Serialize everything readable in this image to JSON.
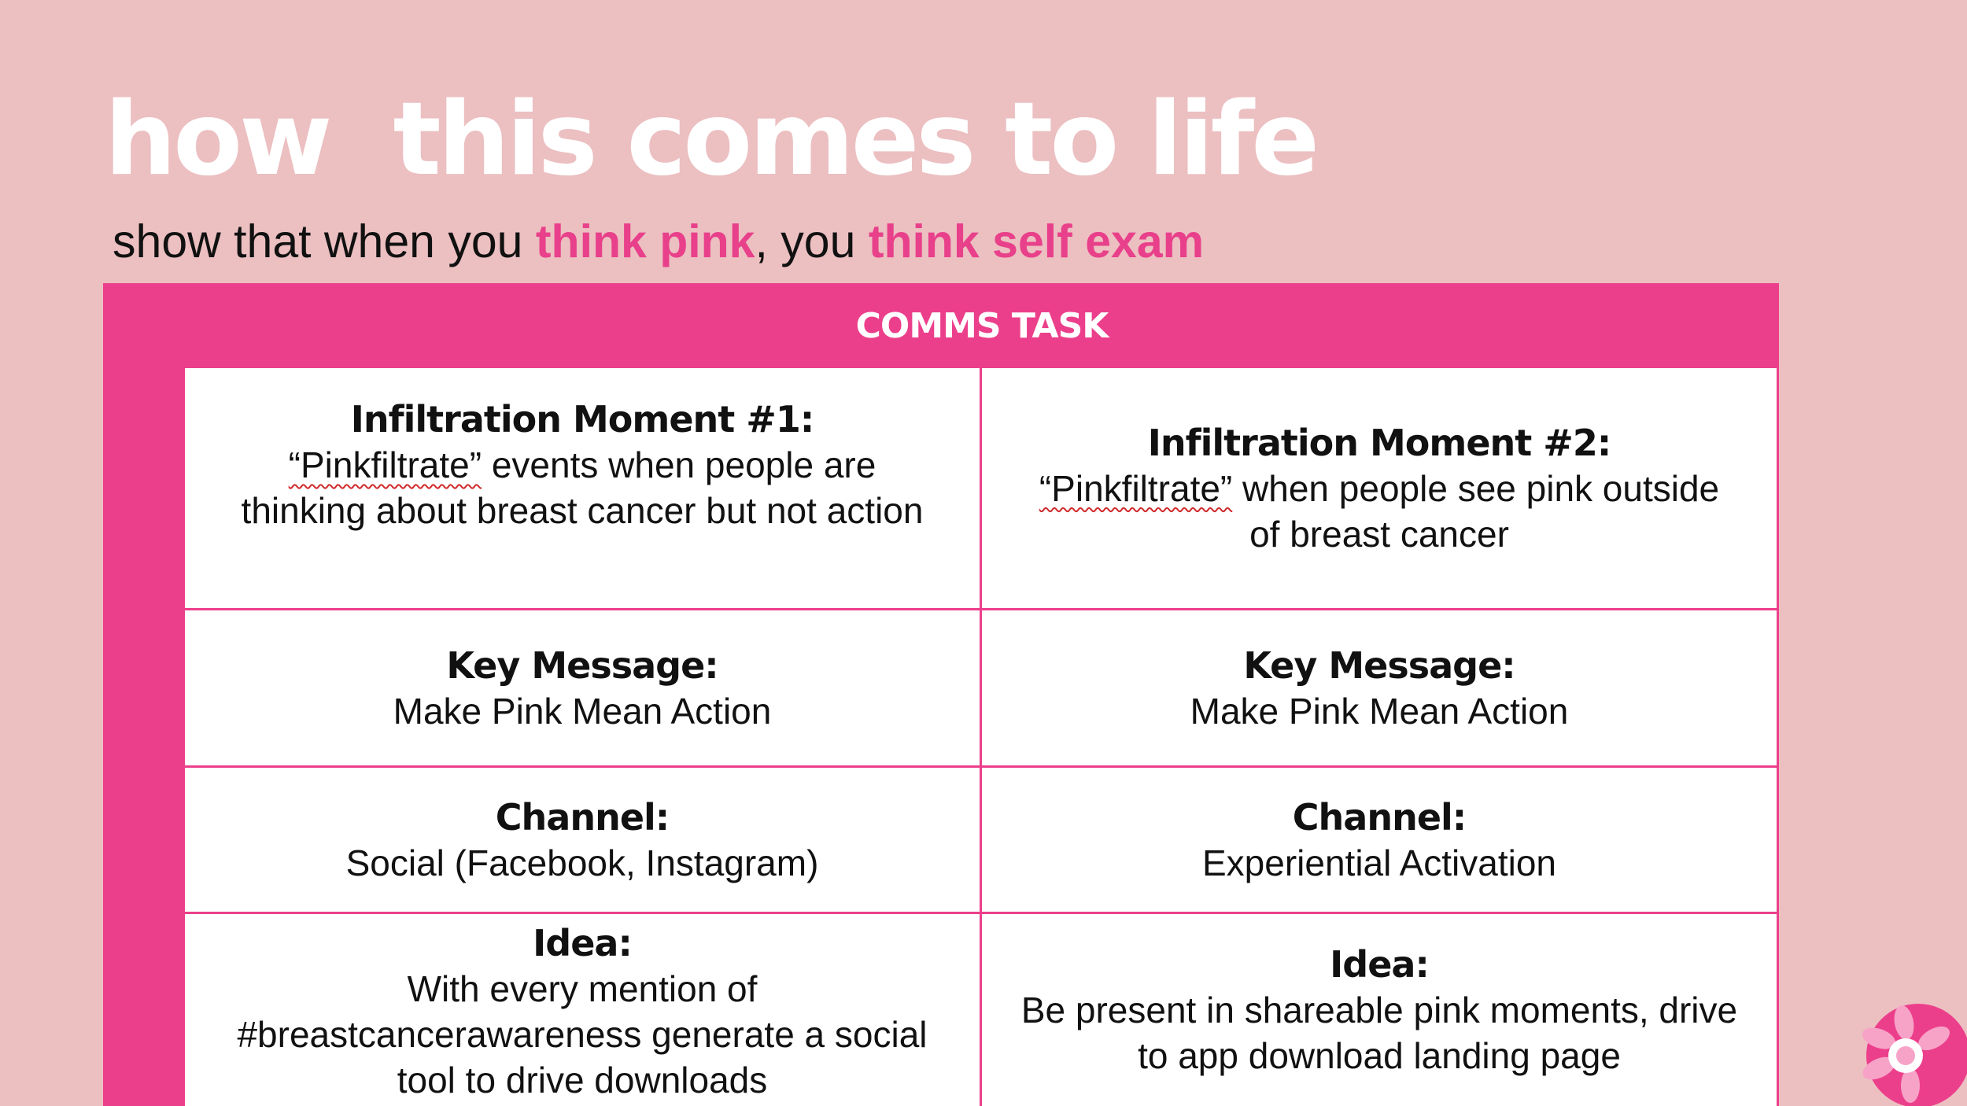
{
  "title": "how  this comes to life",
  "subtitle": {
    "part1": "show that when you ",
    "highlight1": "think pink",
    "part2": ", you ",
    "highlight2": "think self exam"
  },
  "table": {
    "header": "COMMS TASK",
    "rows": [
      {
        "left": {
          "heading": "Infiltration Moment #1:",
          "quoted_word": "“Pinkfiltrate”",
          "line1_rest": " events when people are",
          "line2": "thinking about breast cancer but not action"
        },
        "right": {
          "heading": "Infiltration Moment #2:",
          "quoted_word": "“Pinkfiltrate”",
          "line1_rest": " when people see pink outside",
          "line2": "of breast cancer"
        }
      },
      {
        "left": {
          "heading": "Key Message:",
          "body": "Make Pink Mean Action"
        },
        "right": {
          "heading": "Key Message:",
          "body": "Make Pink Mean Action"
        }
      },
      {
        "left": {
          "heading": "Channel:",
          "body": "Social (Facebook, Instagram)"
        },
        "right": {
          "heading": "Channel:",
          "body": "Experiential Activation"
        }
      },
      {
        "left": {
          "heading": "Idea:",
          "lines": [
            "With every mention of",
            "#breastcancerawareness generate a social",
            "tool to drive downloads"
          ]
        },
        "right": {
          "heading": "Idea:",
          "lines": [
            "Be present in shareable pink moments, drive",
            "to app download landing page"
          ]
        }
      }
    ]
  },
  "colors": {
    "background": "#ecbfc1",
    "accent_pink": "#ec3f8b",
    "title_white": "#ffffff",
    "text_dark": "#111111"
  },
  "icons": {
    "corner_logo": "flower-logo-icon"
  }
}
